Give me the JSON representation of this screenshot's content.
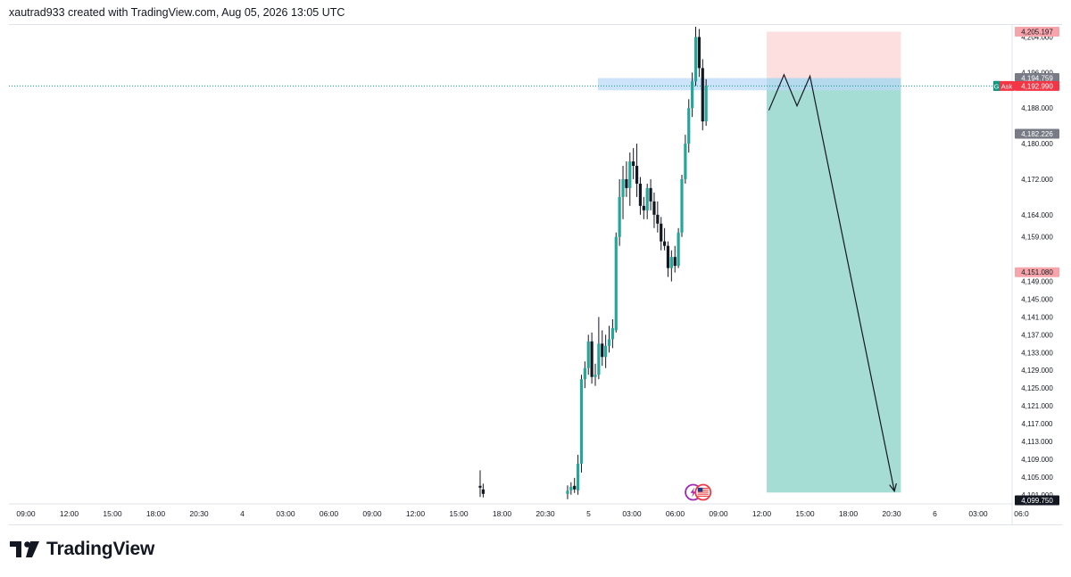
{
  "header": {
    "attribution": "xautrad933 created with TradingView.com, Aug 05, 2026 13:05 UTC"
  },
  "branding": {
    "name": "TradingView"
  },
  "colors": {
    "up": "#26a69a",
    "down": "#131722",
    "stop_zone": "#fddfe0",
    "target_zone": "#a5dcd4",
    "entry_zone": "#bbd9f7",
    "ask_label": "#f23645",
    "ask_tag": "#089981",
    "price_label_grey": "#787b86",
    "price_label_pink": "#f7a5aa"
  },
  "chart_data": {
    "type": "candlestick",
    "instrument_hint": "XAUUSD",
    "y_axis": {
      "ylim": [
        4099.75,
        4206.3
      ],
      "tick_labels": [
        "4,204.000",
        "4,196.000",
        "4,188.000",
        "4,180.000",
        "4,172.000",
        "4,164.000",
        "4,159.000",
        "4,149.000",
        "4,145.000",
        "4,141.000",
        "4,137.000",
        "4,133.000",
        "4,129.000",
        "4,125.000",
        "4,121.000",
        "4,117.000",
        "4,113.000",
        "4,109.000",
        "4,105.000",
        "4,101.000"
      ],
      "tick_values": [
        4204,
        4196,
        4188,
        4180,
        4172,
        4164,
        4159,
        4149,
        4145,
        4141,
        4137,
        4133,
        4129,
        4125,
        4121,
        4117,
        4113,
        4109,
        4105,
        4101
      ]
    },
    "price_labels": [
      {
        "text": "4,205.197",
        "value": 4205.197,
        "style": "pink"
      },
      {
        "text": "4,194.759",
        "value": 4194.759,
        "style": "grey"
      },
      {
        "text": "4,192.990",
        "value": 4192.99,
        "style": "ask",
        "tag": "G",
        "tag_text": "Ask"
      },
      {
        "text": "4,182.226",
        "value": 4182.226,
        "style": "grey"
      },
      {
        "text": "4,151.080",
        "value": 4151.08,
        "style": "pink"
      },
      {
        "text": "4,099.750",
        "value": 4099.75,
        "style": "dark"
      }
    ],
    "x_axis": {
      "tick_labels": [
        "09:00",
        "12:00",
        "15:00",
        "18:00",
        "20:30",
        "4",
        "03:00",
        "06:00",
        "09:00",
        "12:00",
        "15:00",
        "18:00",
        "20:30",
        "5",
        "03:00",
        "06:00",
        "09:00",
        "12:00",
        "15:00",
        "18:00",
        "20:30",
        "6",
        "03:00",
        "06:0"
      ],
      "tick_positions": [
        0,
        1,
        2,
        3,
        4,
        5,
        6,
        7,
        8,
        9,
        10,
        11,
        12,
        13,
        14,
        15,
        16,
        17,
        18,
        19,
        20,
        21,
        22,
        23
      ]
    },
    "ask_price": 4192.99,
    "position": {
      "direction": "short",
      "x_start": 17.3,
      "x_end": 20.4,
      "stop": 4205.197,
      "entry": 4194.759,
      "target": 4101.5
    },
    "entry_band": {
      "x_start": 13.4,
      "x_end": 20.4,
      "top": 4194.759,
      "bottom": 4192.0
    },
    "projection_path": [
      {
        "x": 17.35,
        "y": 4187.5
      },
      {
        "x": 17.7,
        "y": 4195.5
      },
      {
        "x": 18.0,
        "y": 4188.5
      },
      {
        "x": 18.3,
        "y": 4195.2
      },
      {
        "x": 20.25,
        "y": 4101.8
      }
    ],
    "candles": [
      {
        "x": 10.68,
        "o": 4103.0,
        "h": 4106.5,
        "l": 4100.5,
        "c": 4102.6
      },
      {
        "x": 10.75,
        "o": 4102.2,
        "h": 4103.5,
        "l": 4100.4,
        "c": 4101.2
      },
      {
        "x": 12.7,
        "o": 4101.2,
        "h": 4103.1,
        "l": 4100.0,
        "c": 4101.9
      },
      {
        "x": 12.78,
        "o": 4102.0,
        "h": 4103.8,
        "l": 4101.0,
        "c": 4102.8
      },
      {
        "x": 12.86,
        "o": 4103.0,
        "h": 4104.8,
        "l": 4101.4,
        "c": 4102.2
      },
      {
        "x": 12.94,
        "o": 4102.0,
        "h": 4110.0,
        "l": 4101.0,
        "c": 4108.0
      },
      {
        "x": 13.02,
        "o": 4108.0,
        "h": 4128.0,
        "l": 4106.0,
        "c": 4127.0
      },
      {
        "x": 13.1,
        "o": 4127.0,
        "h": 4131.0,
        "l": 4125.0,
        "c": 4129.5
      },
      {
        "x": 13.18,
        "o": 4129.5,
        "h": 4137.0,
        "l": 4128.0,
        "c": 4135.5
      },
      {
        "x": 13.26,
        "o": 4135.5,
        "h": 4137.5,
        "l": 4126.0,
        "c": 4127.5
      },
      {
        "x": 13.34,
        "o": 4127.5,
        "h": 4130.5,
        "l": 4125.5,
        "c": 4128.0
      },
      {
        "x": 13.42,
        "o": 4128.0,
        "h": 4141.0,
        "l": 4127.0,
        "c": 4135.0
      },
      {
        "x": 13.5,
        "o": 4135.0,
        "h": 4138.0,
        "l": 4130.0,
        "c": 4132.0
      },
      {
        "x": 13.58,
        "o": 4132.0,
        "h": 4137.0,
        "l": 4129.5,
        "c": 4134.5
      },
      {
        "x": 13.66,
        "o": 4134.5,
        "h": 4139.0,
        "l": 4133.0,
        "c": 4136.0
      },
      {
        "x": 13.74,
        "o": 4136.0,
        "h": 4140.5,
        "l": 4134.0,
        "c": 4138.5
      },
      {
        "x": 13.82,
        "o": 4138.0,
        "h": 4160.0,
        "l": 4137.5,
        "c": 4159.0
      },
      {
        "x": 13.9,
        "o": 4159.0,
        "h": 4172.0,
        "l": 4157.0,
        "c": 4168.0
      },
      {
        "x": 13.98,
        "o": 4168.0,
        "h": 4175.0,
        "l": 4163.0,
        "c": 4172.0
      },
      {
        "x": 14.06,
        "o": 4172.0,
        "h": 4176.0,
        "l": 4168.0,
        "c": 4170.0
      },
      {
        "x": 14.14,
        "o": 4170.0,
        "h": 4178.0,
        "l": 4166.0,
        "c": 4176.0
      },
      {
        "x": 14.22,
        "o": 4176.0,
        "h": 4179.0,
        "l": 4172.0,
        "c": 4175.0
      },
      {
        "x": 14.3,
        "o": 4175.0,
        "h": 4180.0,
        "l": 4168.0,
        "c": 4171.0
      },
      {
        "x": 14.38,
        "o": 4171.0,
        "h": 4172.5,
        "l": 4164.0,
        "c": 4166.0
      },
      {
        "x": 14.46,
        "o": 4166.0,
        "h": 4168.0,
        "l": 4163.0,
        "c": 4165.0
      },
      {
        "x": 14.54,
        "o": 4165.0,
        "h": 4171.0,
        "l": 4163.0,
        "c": 4170.0
      },
      {
        "x": 14.62,
        "o": 4170.0,
        "h": 4172.0,
        "l": 4165.0,
        "c": 4167.0
      },
      {
        "x": 14.7,
        "o": 4167.0,
        "h": 4169.0,
        "l": 4161.0,
        "c": 4164.0
      },
      {
        "x": 14.78,
        "o": 4164.0,
        "h": 4167.0,
        "l": 4160.0,
        "c": 4162.0
      },
      {
        "x": 14.86,
        "o": 4162.0,
        "h": 4163.5,
        "l": 4156.0,
        "c": 4158.0
      },
      {
        "x": 14.94,
        "o": 4158.0,
        "h": 4161.0,
        "l": 4156.0,
        "c": 4157.0
      },
      {
        "x": 15.02,
        "o": 4157.0,
        "h": 4158.0,
        "l": 4150.0,
        "c": 4152.0
      },
      {
        "x": 15.1,
        "o": 4152.0,
        "h": 4156.0,
        "l": 4149.0,
        "c": 4154.5
      },
      {
        "x": 15.18,
        "o": 4154.5,
        "h": 4157.0,
        "l": 4151.0,
        "c": 4152.5
      },
      {
        "x": 15.26,
        "o": 4152.5,
        "h": 4161.0,
        "l": 4152.0,
        "c": 4160.0
      },
      {
        "x": 15.34,
        "o": 4160.0,
        "h": 4173.0,
        "l": 4159.0,
        "c": 4172.0
      },
      {
        "x": 15.42,
        "o": 4172.0,
        "h": 4182.0,
        "l": 4171.0,
        "c": 4180.0
      },
      {
        "x": 15.5,
        "o": 4180.0,
        "h": 4190.0,
        "l": 4178.0,
        "c": 4188.0
      },
      {
        "x": 15.58,
        "o": 4188.0,
        "h": 4196.0,
        "l": 4186.0,
        "c": 4194.0
      },
      {
        "x": 15.66,
        "o": 4194.0,
        "h": 4206.3,
        "l": 4193.0,
        "c": 4204.0
      },
      {
        "x": 15.74,
        "o": 4204.0,
        "h": 4205.8,
        "l": 4195.0,
        "c": 4197.0
      },
      {
        "x": 15.82,
        "o": 4197.0,
        "h": 4199.0,
        "l": 4183.0,
        "c": 4185.0
      },
      {
        "x": 15.9,
        "o": 4185.0,
        "h": 4194.5,
        "l": 4184.0,
        "c": 4192.99
      }
    ]
  },
  "event_icons": [
    {
      "name": "lightning-event-icon",
      "x": 15.6
    },
    {
      "name": "us-flag-event-icon",
      "x": 15.83
    }
  ]
}
